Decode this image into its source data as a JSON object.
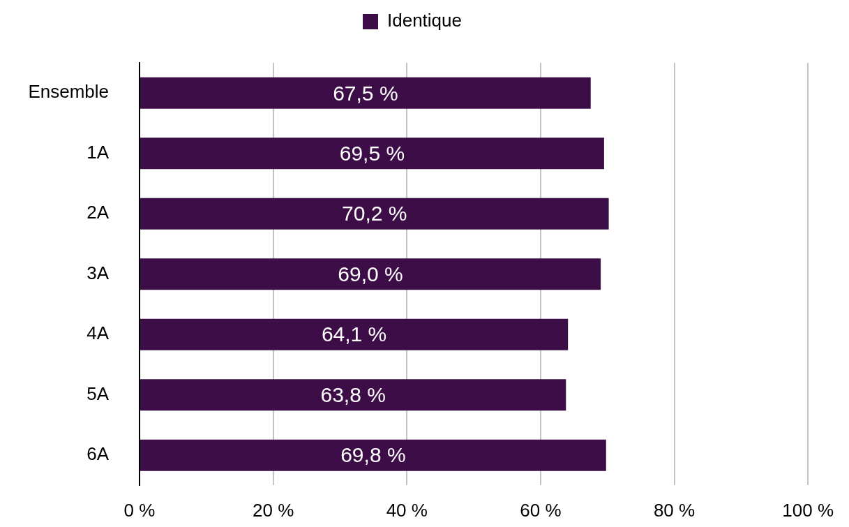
{
  "chart_data": {
    "type": "bar",
    "orientation": "horizontal",
    "legend": "top",
    "grid": "x",
    "categories": [
      "Ensemble",
      "1A",
      "2A",
      "3A",
      "4A",
      "5A",
      "6A"
    ],
    "series": [
      {
        "name": "Identique",
        "color": "#3d0d47",
        "values": [
          67.5,
          69.5,
          70.2,
          69.0,
          64.1,
          63.8,
          69.8
        ],
        "value_labels": [
          "67,5 %",
          "69,5 %",
          "70,2 %",
          "69,0 %",
          "64,1 %",
          "63,8 %",
          "69,8 %"
        ]
      }
    ],
    "xlim": [
      0,
      100
    ],
    "xticks": [
      {
        "value": 0,
        "label": "0 %"
      },
      {
        "value": 20,
        "label": "20 %"
      },
      {
        "value": 40,
        "label": "40 %"
      },
      {
        "value": 60,
        "label": "60 %"
      },
      {
        "value": 80,
        "label": "80 %"
      },
      {
        "value": 100,
        "label": "100 %"
      }
    ]
  }
}
